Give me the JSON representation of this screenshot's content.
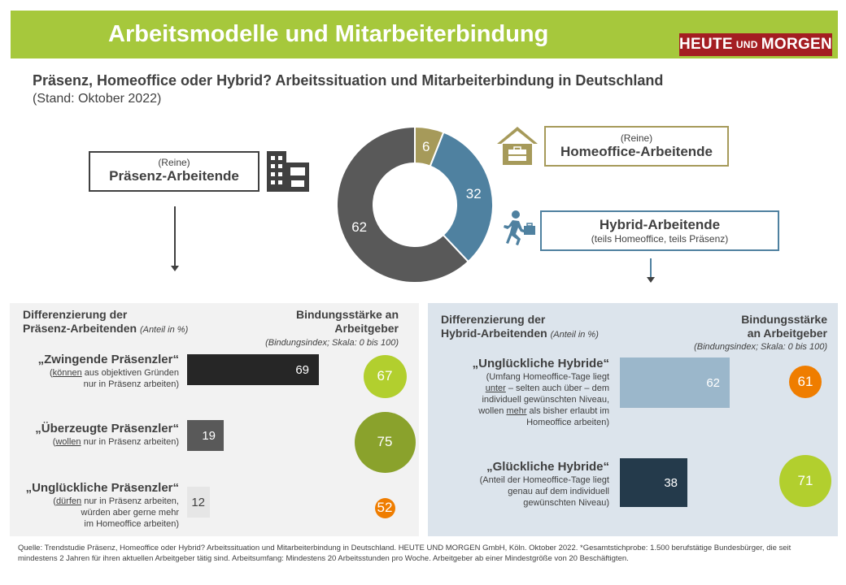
{
  "header": {
    "title": "Arbeitsmodelle und Mitarbeiterbindung",
    "logo_part1": "HEUTE",
    "logo_part2": "UND",
    "logo_part3": "MORGEN",
    "accent_color": "#a6c83c",
    "logo_color": "#a41e22"
  },
  "subtitle": "Präsenz, Homeoffice oder Hybrid? Arbeitssituation und Mitarbeiterbindung in Deutschland",
  "stand": "(Stand: Oktober 2022)",
  "groups": {
    "praesenz": {
      "pre": "(Reine)",
      "label": "Präsenz-Arbeitende",
      "icon": "office-building-icon"
    },
    "homeoffice": {
      "pre": "(Reine)",
      "label": "Homeoffice-Arbeitende",
      "icon": "house-briefcase-icon"
    },
    "hybrid": {
      "label": "Hybrid-Arbeitende",
      "sub": "(teils Homeoffice, teils Präsenz)",
      "icon": "running-person-briefcase-icon"
    }
  },
  "left_panel": {
    "title_line1": "Differenzierung der",
    "title_line2": "Präsenz-Arbeitenden",
    "title_note": "(Anteil in %)",
    "bind_head_line1": "Bindungsstärke an",
    "bind_head_line2": "Arbeitgeber",
    "bind_sub": "(Bindungsindex;  Skala: 0 bis 100)",
    "items": [
      {
        "name": "„Zwingende Präsenzler“",
        "desc_u": "können",
        "desc_rest": " aus objektiven Gründen",
        "desc_line2": "nur in Präsenz arbeiten)",
        "value": "69",
        "index": "67"
      },
      {
        "name": "„Überzeugte Präsenzler“",
        "desc_u": "wollen",
        "desc_rest": " nur in Präsenz arbeiten)",
        "desc_line2": "",
        "value": "19",
        "index": "75"
      },
      {
        "name": "„Unglückliche Präsenzler“",
        "desc_u": "dürfen",
        "desc_rest": "  nur in Präsenz arbeiten,",
        "desc_line2": "würden aber gerne mehr",
        "desc_line3": "im Homeoffice arbeiten)",
        "value": "12",
        "index": "52"
      }
    ]
  },
  "right_panel": {
    "title_line1": "Differenzierung der",
    "title_line2": "Hybrid-Arbeitenden",
    "title_note": "(Anteil in %)",
    "bind_head_line1": "Bindungsstärke",
    "bind_head_line2": "an Arbeitgeber",
    "bind_sub": "(Bindungsindex;  Skala: 0 bis 100)",
    "items": [
      {
        "name": "„Unglückliche Hybride“",
        "line1": "(Umfang Homeoffice-Tage  liegt",
        "line2_u": "unter",
        "line2_rest": " – selten auch über – dem",
        "line3": "individuell  gewünschten Niveau,",
        "line4_pre": "wollen ",
        "line4_u": "mehr",
        "line4_rest": " als bisher erlaubt im",
        "line5": "Homeoffice  arbeiten)",
        "value": "62",
        "index": "61"
      },
      {
        "name": "„Glückliche Hybride“",
        "line1": "(Anteil der Homeoffice-Tage   liegt",
        "line2": "genau auf dem individuell",
        "line3": "gewünschten Niveau)",
        "value": "38",
        "index": "71"
      }
    ]
  },
  "source": "Quelle: Trendstudie Präsenz, Homeoffice oder Hybrid? Arbeitssituation und Mitarbeiterbindung in Deutschland. HEUTE  UND  MORGEN  GmbH,  Köln. Oktober 2022. *Gesamtstichprobe: 1.500 berufstätige Bundesbürger, die seit mindestens 2 Jahren für ihren aktuellen Arbeitgeber tätig sind. Arbeitsumfang: Mindestens 20 Arbeitsstunden pro Woche. Arbeitgeber ab einer Mindestgröße von 20 Beschäftigten.",
  "chart_data": [
    {
      "type": "pie",
      "categories": [
        "Präsenz-Arbeitende",
        "Homeoffice-Arbeitende",
        "Hybrid-Arbeitende"
      ],
      "values": [
        62,
        6,
        32
      ],
      "colors": [
        "#595959",
        "#a69a5a",
        "#4f81a0"
      ]
    },
    {
      "type": "bar",
      "categories": [
        "„Zwingende Präsenzler“",
        "„Überzeugte Präsenzler“",
        "„Unglückliche Präsenzler“"
      ],
      "series": [
        {
          "name": "Anteil in %",
          "values": [
            69,
            19,
            12
          ]
        },
        {
          "name": "Bindungsindex",
          "values": [
            67,
            75,
            52
          ]
        }
      ],
      "bar_colors": [
        "#262626",
        "#595959",
        "#e6e6e6"
      ],
      "circle_colors": [
        "#b2cf2e",
        "#8aa22c",
        "#ef7d00"
      ]
    },
    {
      "type": "bar",
      "categories": [
        "„Unglückliche Hybride“",
        "„Glückliche Hybride“"
      ],
      "series": [
        {
          "name": "Anteil in %",
          "values": [
            62,
            38
          ]
        },
        {
          "name": "Bindungsindex",
          "values": [
            61,
            71
          ]
        }
      ],
      "bar_colors": [
        "#9bb7cb",
        "#243a4b"
      ],
      "circle_colors": [
        "#ef7d00",
        "#b2cf2e"
      ]
    }
  ]
}
